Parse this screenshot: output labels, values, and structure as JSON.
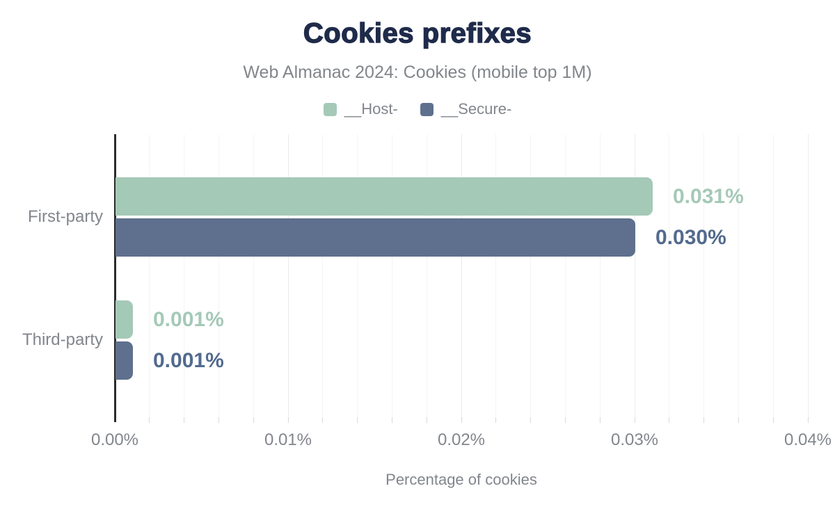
{
  "header": {
    "title": "Cookies prefixes",
    "subtitle": "Web Almanac 2024: Cookies (mobile top 1M)"
  },
  "colors": {
    "title_text": "#1f2b4a",
    "muted_text": "#82868c",
    "host_bar": "#a5c9b7",
    "secure_bar": "#5e708d",
    "host_value_text": "#a5c9b7",
    "secure_value_text": "#526a8e",
    "y_axis_line": "#2b2b2b",
    "gridline_minor": "#f4f4f4",
    "gridline_major": "#ebebeb",
    "tick_mark": "#d9d9d9",
    "zero_tick_mark": "#2b2b2b"
  },
  "chart_data": {
    "type": "bar",
    "orientation": "horizontal",
    "title": "Cookies prefixes",
    "subtitle": "Web Almanac 2024: Cookies (mobile top 1M)",
    "categories": [
      "First-party",
      "Third-party"
    ],
    "series": [
      {
        "name": "__Host-",
        "color_key": "host",
        "values": [
          0.031,
          0.001
        ],
        "labels": [
          "0.031%",
          "0.001%"
        ]
      },
      {
        "name": "__Secure-",
        "color_key": "secure",
        "values": [
          0.03,
          0.001
        ],
        "labels": [
          "0.030%",
          "0.001%"
        ]
      }
    ],
    "xlabel": "Percentage of cookies",
    "x_ticks": [
      "0.00%",
      "0.01%",
      "0.02%",
      "0.03%",
      "0.04%"
    ],
    "x_tick_values": [
      0,
      0.01,
      0.02,
      0.03,
      0.04
    ],
    "xlim": [
      0,
      0.04
    ],
    "minor_tick_step": 0.002,
    "grid": "vertical-minor",
    "legend_position": "top",
    "value_labels": "outside-end"
  }
}
